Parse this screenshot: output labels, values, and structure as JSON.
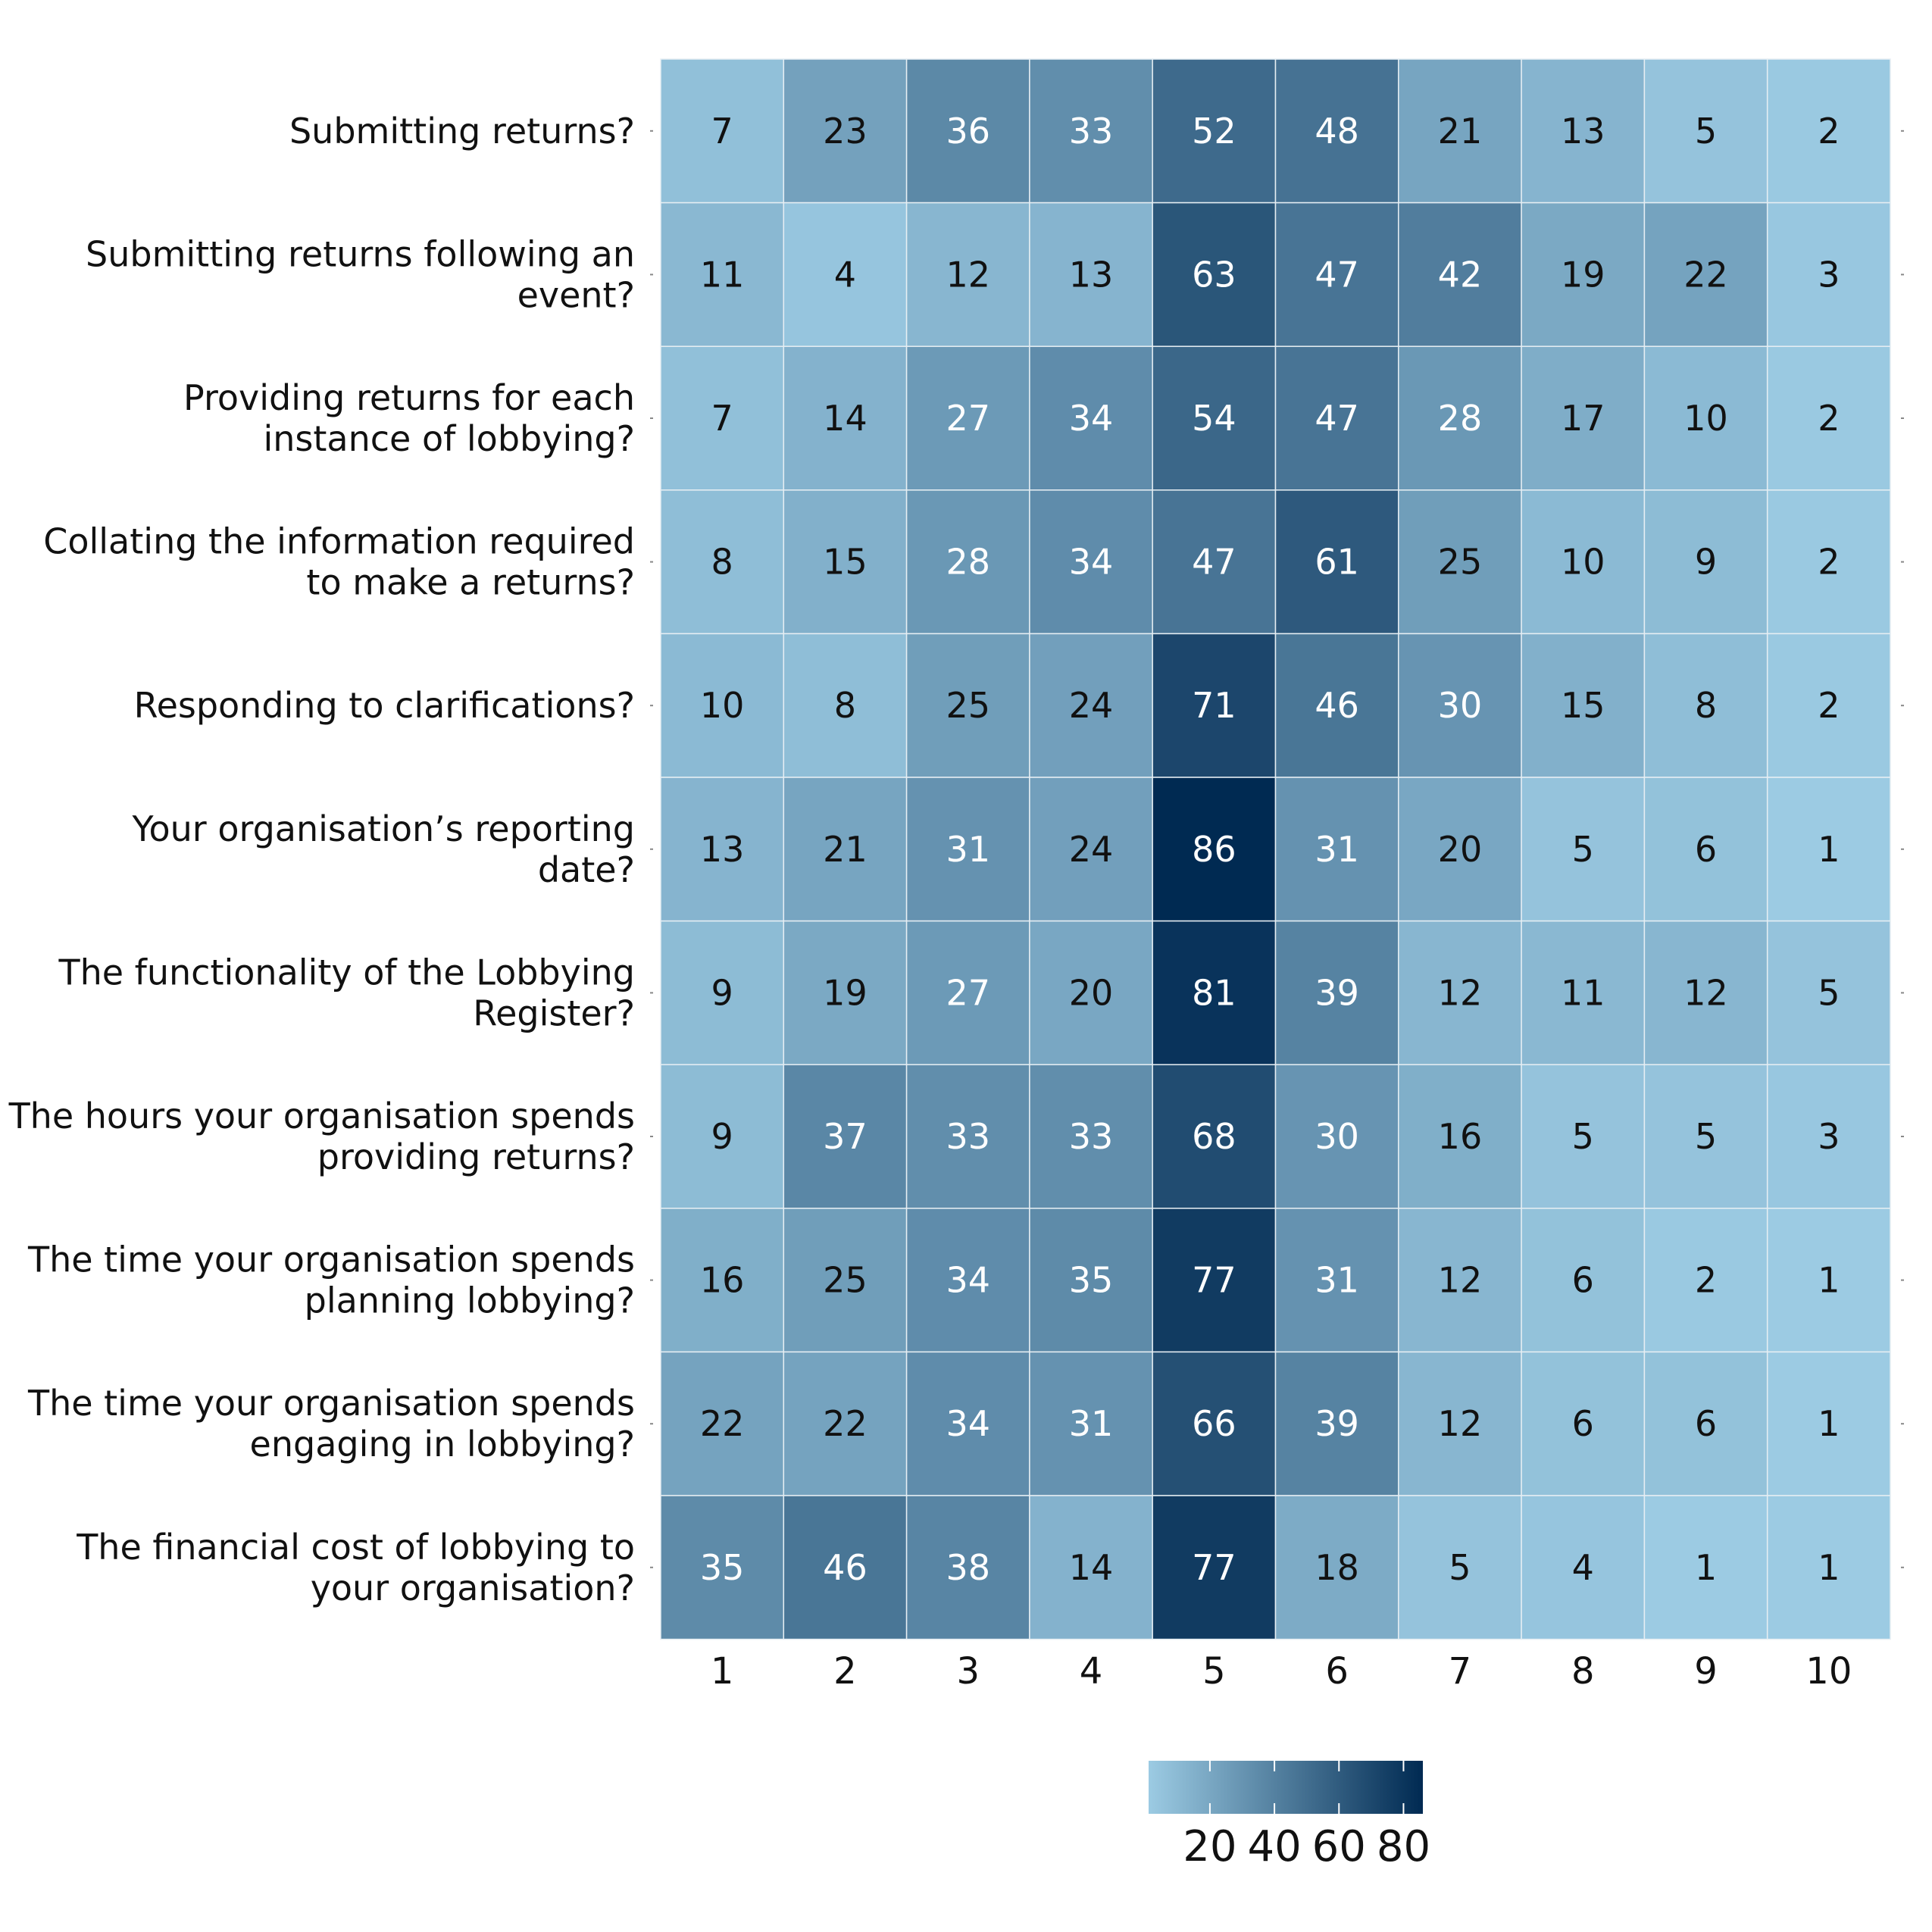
{
  "chart_data": {
    "type": "heatmap",
    "title": "",
    "xlabel": "",
    "ylabel": "",
    "columns": [
      "1",
      "2",
      "3",
      "4",
      "5",
      "6",
      "7",
      "8",
      "9",
      "10"
    ],
    "rows": [
      [
        "Submitting returns?"
      ],
      [
        "Submitting returns following an",
        "event?"
      ],
      [
        "Providing returns for each",
        "instance of lobbying?"
      ],
      [
        "Collating the information required",
        "to make a returns?"
      ],
      [
        "Responding to clarifications?"
      ],
      [
        "Your organisation’s reporting",
        "date?"
      ],
      [
        "The functionality of the Lobbying",
        "Register?"
      ],
      [
        "The hours your organisation spends",
        "providing returns?"
      ],
      [
        "The time your organisation spends",
        "planning lobbying?"
      ],
      [
        "The time your organisation spends",
        "engaging in lobbying?"
      ],
      [
        "The financial cost of lobbying to",
        "your organisation?"
      ]
    ],
    "values": [
      [
        7,
        23,
        36,
        33,
        52,
        48,
        21,
        13,
        5,
        2
      ],
      [
        11,
        4,
        12,
        13,
        63,
        47,
        42,
        19,
        22,
        3
      ],
      [
        7,
        14,
        27,
        34,
        54,
        47,
        28,
        17,
        10,
        2
      ],
      [
        8,
        15,
        28,
        34,
        47,
        61,
        25,
        10,
        9,
        2
      ],
      [
        10,
        8,
        25,
        24,
        71,
        46,
        30,
        15,
        8,
        2
      ],
      [
        13,
        21,
        31,
        24,
        86,
        31,
        20,
        5,
        6,
        1
      ],
      [
        9,
        19,
        27,
        20,
        81,
        39,
        12,
        11,
        12,
        5
      ],
      [
        9,
        37,
        33,
        33,
        68,
        30,
        16,
        5,
        5,
        3
      ],
      [
        16,
        25,
        34,
        35,
        77,
        31,
        12,
        6,
        2,
        1
      ],
      [
        22,
        22,
        34,
        31,
        66,
        39,
        12,
        6,
        6,
        1
      ],
      [
        35,
        46,
        38,
        14,
        77,
        18,
        5,
        4,
        1,
        1
      ]
    ],
    "color_scale": {
      "min": 1,
      "max": 86,
      "low_color": "#9ccbe3",
      "high_color": "#002a52",
      "legend_ticks": [
        "20",
        "40",
        "60",
        "80"
      ],
      "legend_tick_values": [
        20,
        40,
        60,
        80
      ],
      "legend_position": "bottom"
    },
    "grid_line_color": "#e6eef3",
    "text_light": "#ffffff",
    "text_dark": "#111111"
  }
}
